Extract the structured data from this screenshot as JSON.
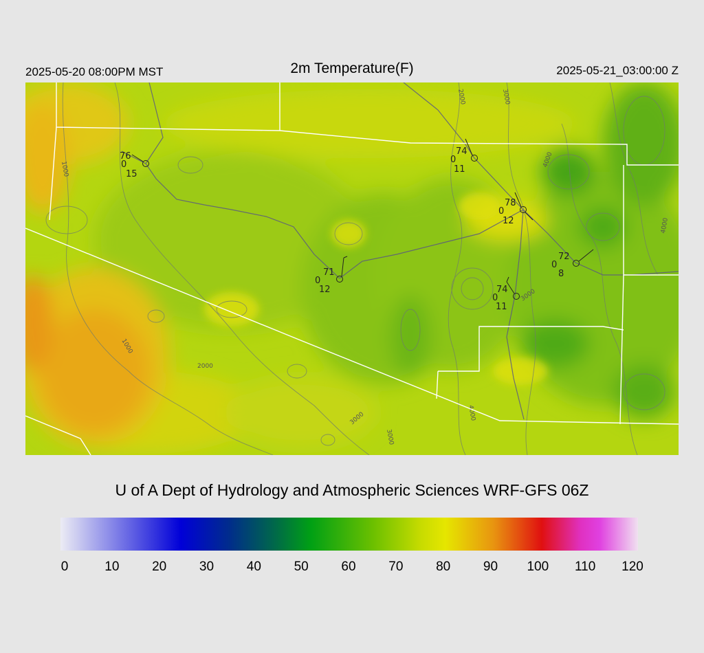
{
  "header": {
    "valid_local": "2025-05-20 08:00PM MST",
    "title": "2m Temperature(F)",
    "valid_utc": "2025-05-21_03:00:00 Z"
  },
  "credit": "U of A Dept of Hydrology and Atmospheric Sciences WRF-GFS 06Z",
  "colorbar": {
    "min": 0,
    "max": 120,
    "ticks": [
      "0",
      "10",
      "20",
      "30",
      "40",
      "50",
      "60",
      "70",
      "80",
      "90",
      "100",
      "110",
      "120"
    ],
    "stops": [
      {
        "value": 0,
        "color": "#ececf4"
      },
      {
        "value": 25,
        "color": "#0000d8"
      },
      {
        "value": 35,
        "color": "#002c8c"
      },
      {
        "value": 45,
        "color": "#006c46"
      },
      {
        "value": 52,
        "color": "#00a014"
      },
      {
        "value": 65,
        "color": "#6cc000"
      },
      {
        "value": 75,
        "color": "#c8dc00"
      },
      {
        "value": 80,
        "color": "#e6e600"
      },
      {
        "value": 90,
        "color": "#e89410"
      },
      {
        "value": 100,
        "color": "#e01010"
      },
      {
        "value": 108,
        "color": "#e030c0"
      },
      {
        "value": 112,
        "color": "#e040e0"
      },
      {
        "value": 120,
        "color": "#f0e0f0"
      }
    ]
  },
  "stations": [
    {
      "temp": "76",
      "dew": "0",
      "wind": "15"
    },
    {
      "temp": "74",
      "dew": "0",
      "wind": "11"
    },
    {
      "temp": "78",
      "dew": "0",
      "wind": "12"
    },
    {
      "temp": "71",
      "dew": "0",
      "wind": "12"
    },
    {
      "temp": "72",
      "dew": "0",
      "wind": "8"
    },
    {
      "temp": "74",
      "dew": "0",
      "wind": "11"
    }
  ],
  "contour_labels": [
    "1000",
    "2000",
    "3000",
    "4000",
    "1000",
    "2000",
    "3000",
    "3000",
    "4000",
    "4000",
    "3000"
  ]
}
